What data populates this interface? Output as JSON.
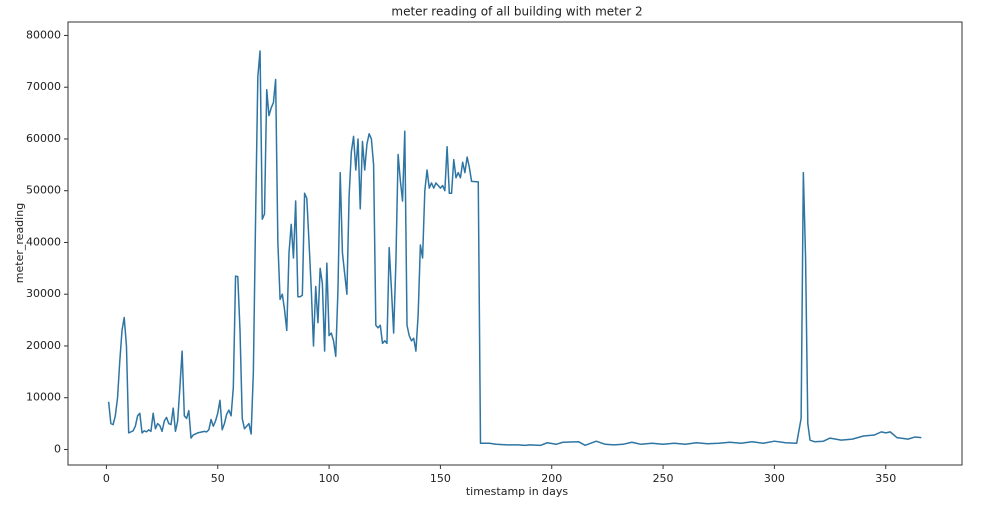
{
  "chart_data": {
    "type": "line",
    "title": "meter reading of all building with meter 2",
    "xlabel": "timestamp in days",
    "ylabel": "meter_reading",
    "x": [
      1,
      2,
      3,
      4,
      5,
      6,
      7,
      8,
      9,
      10,
      11,
      12,
      13,
      14,
      15,
      16,
      17,
      18,
      19,
      20,
      21,
      22,
      23,
      24,
      25,
      26,
      27,
      28,
      29,
      30,
      31,
      32,
      33,
      34,
      35,
      36,
      37,
      38,
      39,
      40,
      41,
      42,
      44,
      45,
      46,
      47,
      48,
      49,
      50,
      51,
      52,
      53,
      54,
      55,
      56,
      57,
      58,
      59,
      60,
      61,
      62,
      63,
      64,
      65,
      66,
      67,
      68,
      69,
      70,
      71,
      72,
      73,
      74,
      75,
      76,
      77,
      78,
      79,
      80,
      81,
      82,
      83,
      84,
      85,
      86,
      87,
      88,
      89,
      90,
      91,
      92,
      93,
      94,
      95,
      96,
      97,
      98,
      99,
      100,
      101,
      102,
      103,
      104,
      105,
      106,
      107,
      108,
      109,
      110,
      111,
      112,
      113,
      114,
      115,
      116,
      117,
      118,
      119,
      120,
      121,
      122,
      123,
      124,
      125,
      126,
      127,
      128,
      129,
      130,
      131,
      132,
      133,
      134,
      135,
      136,
      137,
      138,
      139,
      140,
      141,
      142,
      143,
      144,
      145,
      146,
      147,
      148,
      149,
      150,
      151,
      152,
      153,
      154,
      155,
      156,
      157,
      158,
      159,
      160,
      161,
      162,
      163,
      164,
      167,
      168,
      172,
      175,
      180,
      185,
      188,
      190,
      195,
      198,
      202,
      205,
      212,
      215,
      220,
      224,
      228,
      232,
      236,
      240,
      245,
      250,
      255,
      260,
      265,
      270,
      275,
      280,
      285,
      290,
      295,
      300,
      305,
      310,
      312,
      313,
      314,
      315,
      316,
      318,
      322,
      325,
      330,
      335,
      340,
      345,
      348,
      350,
      352,
      355,
      360,
      363,
      366
    ],
    "series": [
      {
        "name": "meter_reading",
        "color": "#2e75a3",
        "values": [
          9200,
          5000,
          4800,
          6500,
          10000,
          17000,
          23000,
          25500,
          20000,
          3200,
          3400,
          3600,
          4500,
          6500,
          7000,
          3200,
          3600,
          3400,
          3800,
          3500,
          7000,
          4000,
          5000,
          4600,
          3500,
          5500,
          6200,
          5000,
          4800,
          8000,
          3500,
          5500,
          12000,
          19000,
          6500,
          6000,
          7500,
          2200,
          2800,
          3000,
          3200,
          3300,
          3500,
          3400,
          3800,
          5800,
          4500,
          5500,
          7000,
          9500,
          3800,
          5000,
          6800,
          7600,
          6500,
          12000,
          33500,
          33400,
          23000,
          6000,
          4000,
          4500,
          5000,
          3000,
          15000,
          45000,
          72000,
          77000,
          44500,
          45500,
          69500,
          64500,
          66000,
          67000,
          71500,
          40000,
          29000,
          30000,
          27000,
          23000,
          38000,
          43500,
          37000,
          48000,
          29500,
          29500,
          29800,
          49500,
          48500,
          40000,
          31000,
          20000,
          31500,
          24500,
          35000,
          32000,
          19000,
          36000,
          22000,
          22500,
          21000,
          18000,
          31000,
          53500,
          38000,
          34000,
          30000,
          49000,
          57500,
          60500,
          54000,
          60000,
          46500,
          59500,
          54000,
          59000,
          61000,
          60000,
          55000,
          24000,
          23500,
          24000,
          20500,
          21000,
          20500,
          39000,
          31000,
          22500,
          36000,
          57000,
          52000,
          48000,
          61500,
          24000,
          22000,
          21000,
          21500,
          19000,
          26000,
          39500,
          37000,
          50000,
          54000,
          50500,
          51500,
          50500,
          51500,
          51000,
          50500,
          51000,
          50000,
          58500,
          49500,
          49500,
          56000,
          52500,
          53500,
          52500,
          55500,
          53500,
          56500,
          54500,
          51800,
          51700,
          1200,
          1200,
          1000,
          900,
          900,
          800,
          900,
          800,
          1300,
          1000,
          1400,
          1500,
          800,
          1600,
          1000,
          900,
          1000,
          1400,
          1000,
          1200,
          1000,
          1200,
          1000,
          1300,
          1100,
          1200,
          1400,
          1200,
          1500,
          1200,
          1600,
          1300,
          1200,
          6000,
          53500,
          37000,
          5000,
          1800,
          1500,
          1600,
          2200,
          1800,
          2000,
          2600,
          2800,
          3400,
          3200,
          3400,
          2300,
          2000,
          2400,
          2300
        ]
      }
    ],
    "xlim": [
      -17.25,
      384.25
    ],
    "ylim": [
      -3000,
      82600
    ],
    "xticks": [
      0,
      50,
      100,
      150,
      200,
      250,
      300,
      350
    ],
    "yticks": [
      0,
      10000,
      20000,
      30000,
      40000,
      50000,
      60000,
      70000,
      80000
    ],
    "grid": false
  }
}
